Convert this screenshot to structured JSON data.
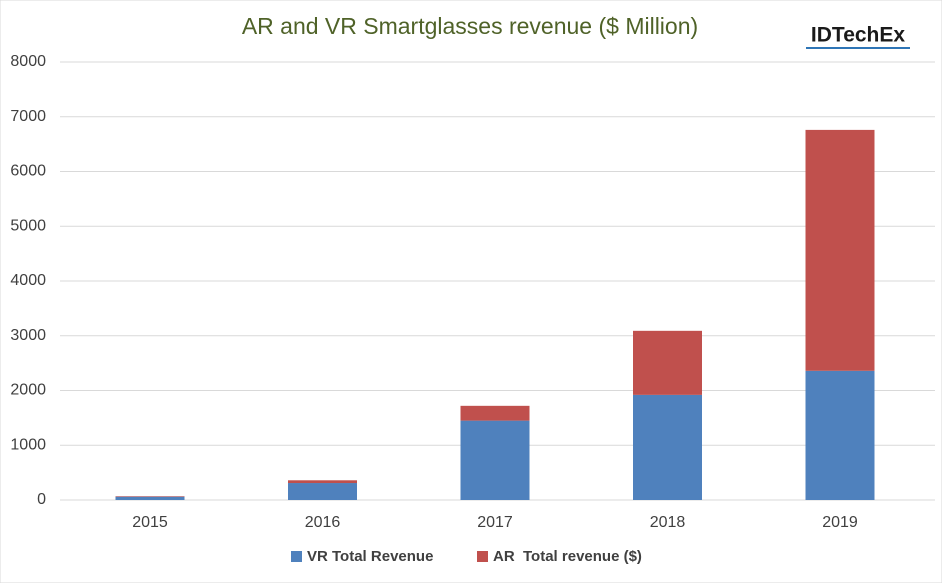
{
  "chart_data": {
    "type": "stacked_bar",
    "title": "AR and VR Smartglasses revenue ($ Million)",
    "logo": "IDTechEx",
    "categories": [
      "2015",
      "2016",
      "2017",
      "2018",
      "2019"
    ],
    "series": [
      {
        "name": "VR Total Revenue",
        "color": "#4f81bd",
        "values": [
          60,
          310,
          1450,
          1920,
          2360
        ]
      },
      {
        "name": "AR  Total revenue ($)",
        "color": "#c0504d",
        "values": [
          10,
          50,
          270,
          1170,
          4400
        ]
      }
    ],
    "ylim": [
      0,
      8000
    ],
    "yticks": [
      0,
      1000,
      2000,
      3000,
      4000,
      5000,
      6000,
      7000,
      8000
    ],
    "grid": true,
    "legend": "bottom"
  }
}
